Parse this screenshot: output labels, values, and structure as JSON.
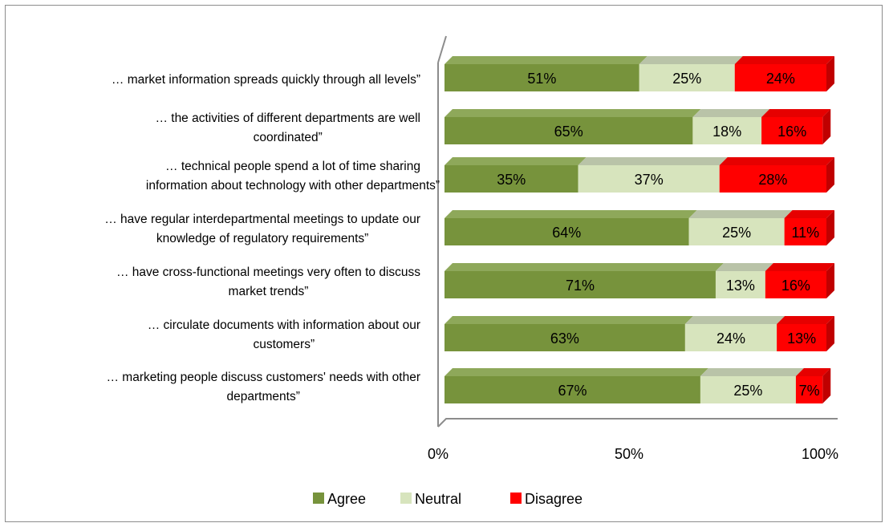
{
  "chart_data": {
    "type": "bar",
    "orientation": "horizontal",
    "stacked": true,
    "percent": true,
    "style": "3d",
    "categories": [
      "… market information spreads quickly through all levels”",
      "… the activities of different departments are well coordinated”",
      "… technical people spend a lot of time sharing information about technology with other departments”",
      "… have regular interdepartmental meetings to update our knowledge of regulatory requirements”",
      "… have cross-functional meetings very often to discuss market trends”",
      "… circulate documents with information about our customers”",
      "… marketing people discuss customers' needs with other departments”"
    ],
    "category_lines": [
      [
        "… market information spreads quickly through all levels”"
      ],
      [
        "… the activities of different departments are well",
        "coordinated”"
      ],
      [
        "… technical people spend a lot of time sharing",
        "information about technology with other departments”"
      ],
      [
        "… have regular interdepartmental meetings to update our",
        "knowledge of regulatory requirements”"
      ],
      [
        "… have cross-functional meetings very often to discuss",
        "market trends”"
      ],
      [
        "… circulate documents with information about our",
        "customers”"
      ],
      [
        "… marketing people discuss customers' needs with other",
        "departments”"
      ]
    ],
    "series": [
      {
        "name": "Agree",
        "color": "#77933c",
        "color_side": "#5b7029",
        "color_top": "#8ea85a",
        "values": [
          51,
          65,
          35,
          64,
          71,
          63,
          67
        ],
        "labels": [
          "51%",
          "65%",
          "35%",
          "64%",
          "71%",
          "63%",
          "67%"
        ]
      },
      {
        "name": "Neutral",
        "color": "#d7e4bd",
        "color_side": "#b3bf9c",
        "color_top": "#b9c3a8",
        "values": [
          25,
          18,
          37,
          25,
          13,
          24,
          25
        ],
        "labels": [
          "25%",
          "18%",
          "37%",
          "25%",
          "13%",
          "24%",
          "25%"
        ]
      },
      {
        "name": "Disagree",
        "color": "#ff0000",
        "color_side": "#c00000",
        "color_top": "#e60000",
        "values": [
          24,
          16,
          28,
          11,
          16,
          13,
          7
        ],
        "labels": [
          "24%",
          "16%",
          "28%",
          "11%",
          "16%",
          "13%",
          "7%"
        ]
      }
    ],
    "x_ticks": [
      "0%",
      "50%",
      "100%"
    ],
    "xlim": [
      0,
      100
    ],
    "grid": false,
    "legend_position": "bottom"
  }
}
